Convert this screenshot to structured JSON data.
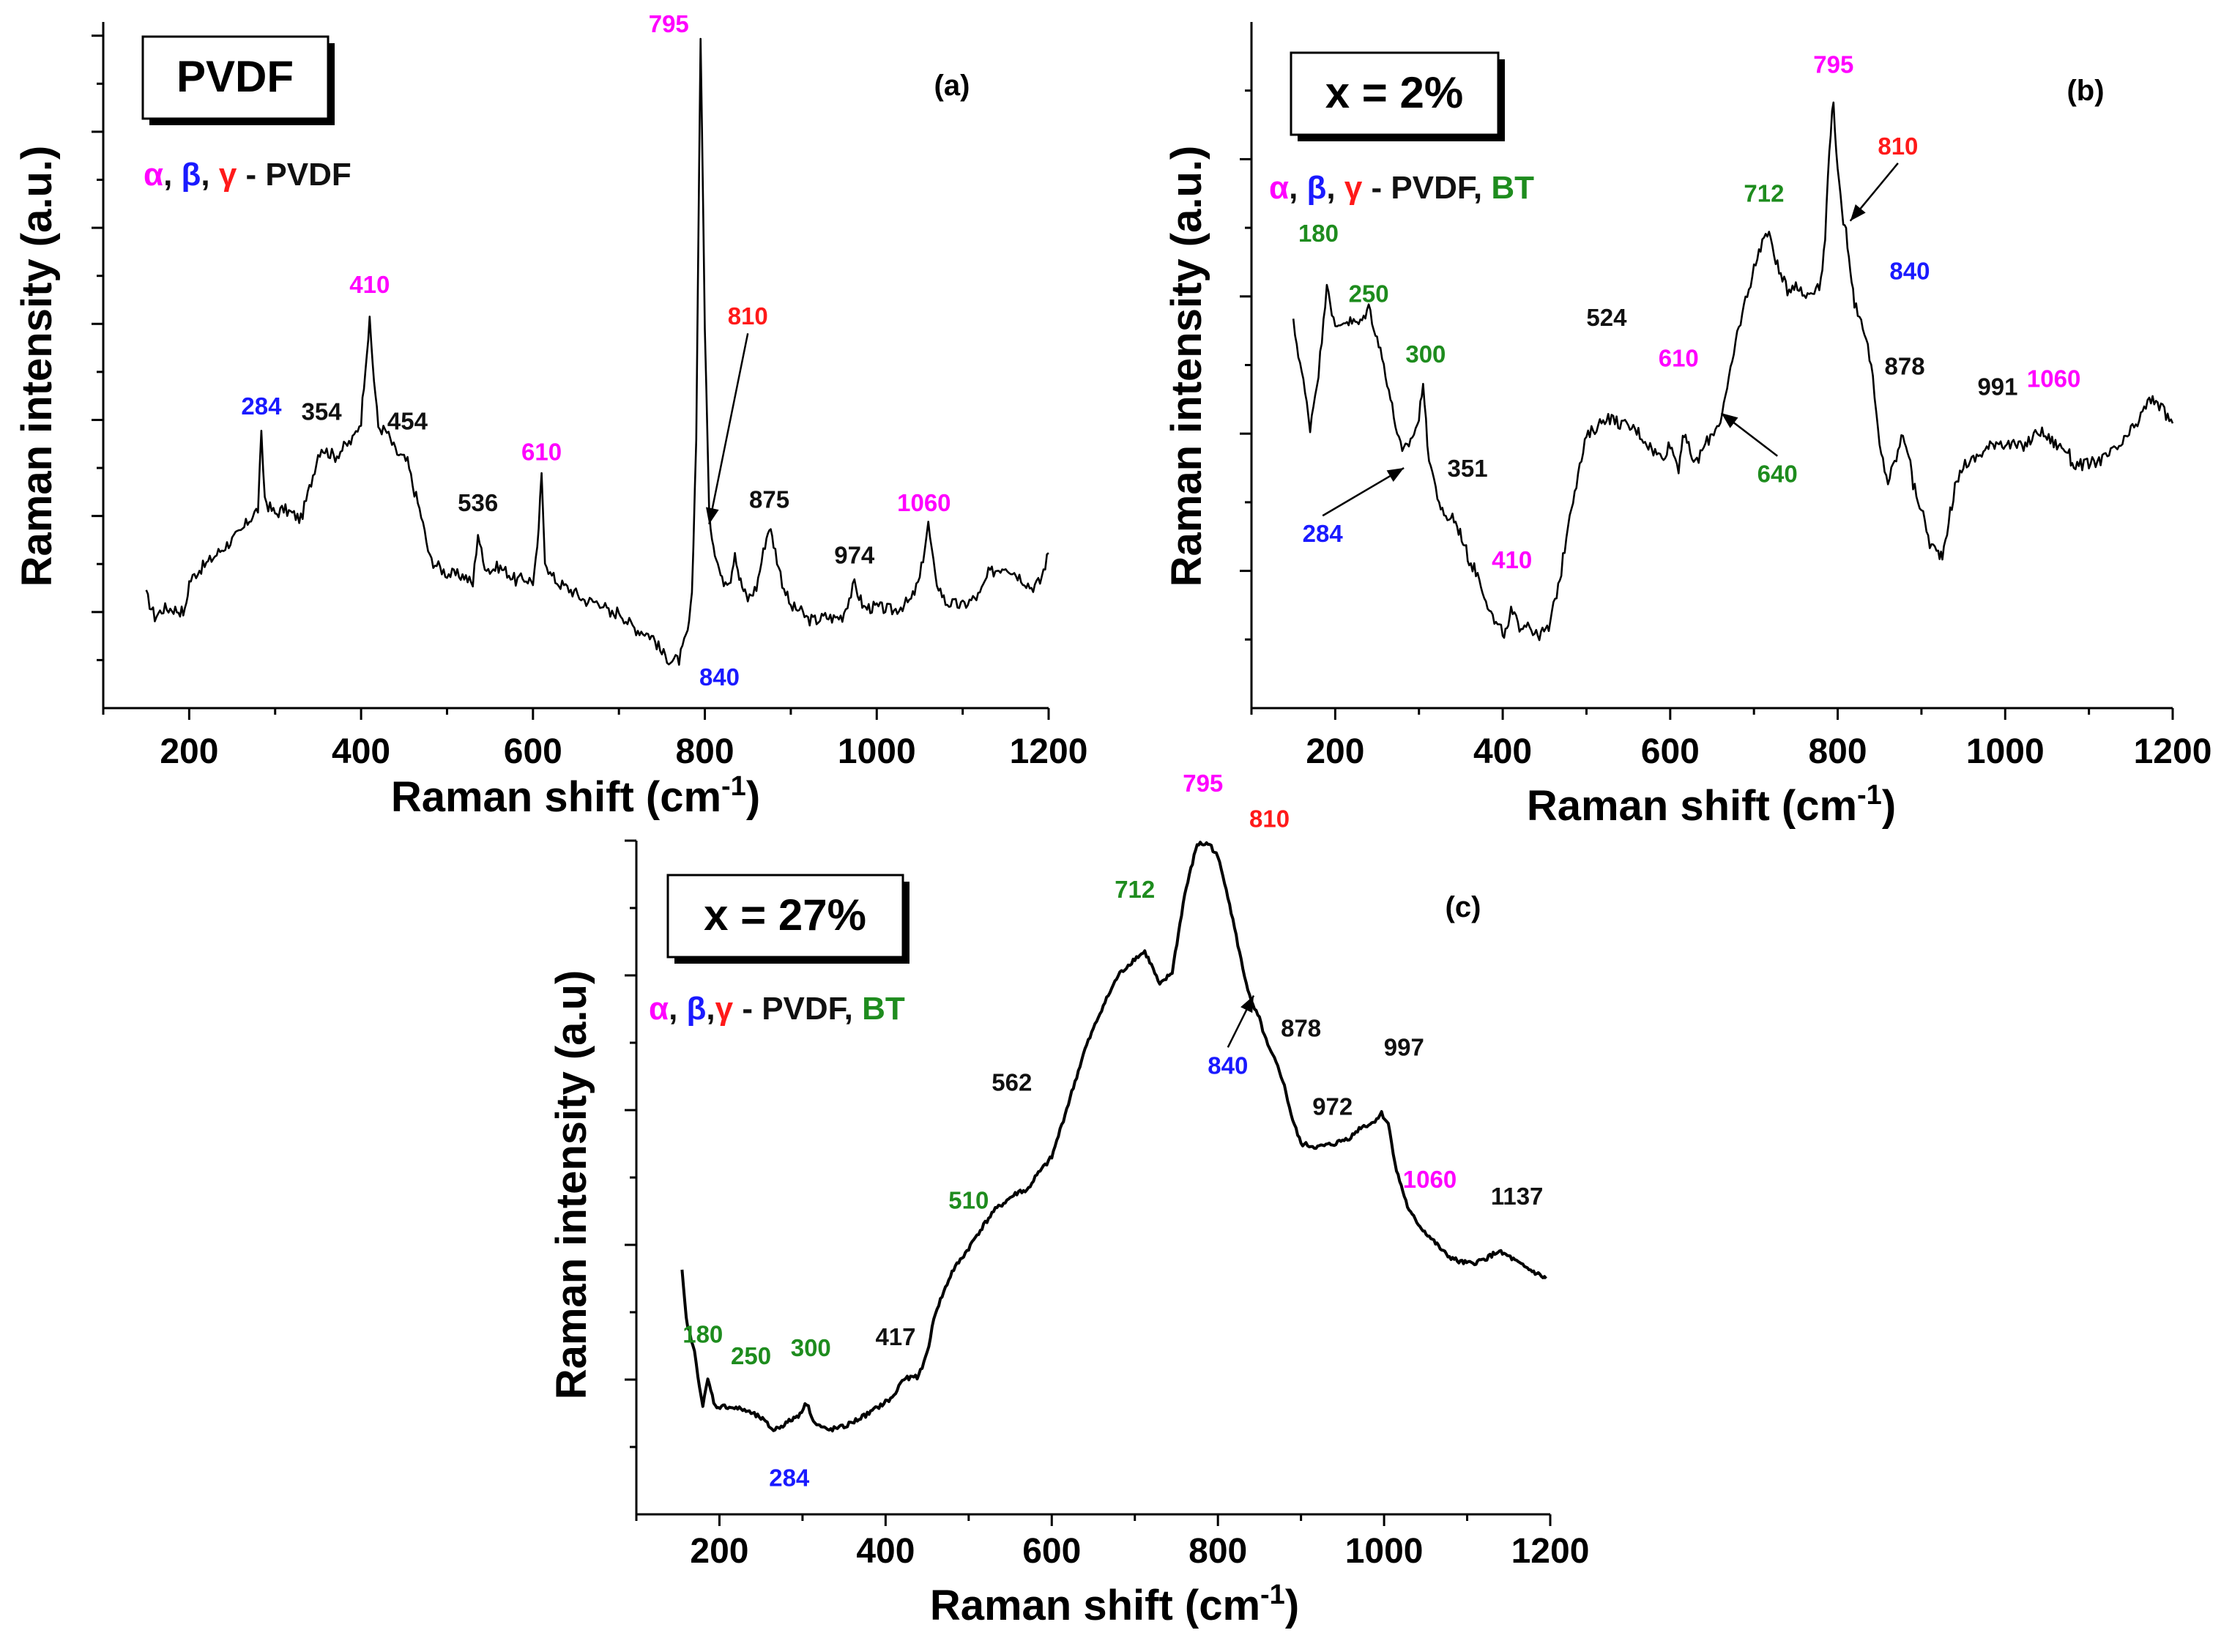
{
  "colors": {
    "alpha": "#ff00ff",
    "beta": "#1a1aff",
    "gamma": "#ff1a1a",
    "bt": "#1e8c1e",
    "neutral": "#111111",
    "line": "#000000"
  },
  "chart_data": [
    {
      "type": "line",
      "panel": "(a)",
      "sample_label": "PVDF",
      "legend": [
        {
          "text": "α",
          "color": "alpha"
        },
        {
          "text": ", ",
          "color": "neutral"
        },
        {
          "text": "β",
          "color": "beta"
        },
        {
          "text": ", ",
          "color": "neutral"
        },
        {
          "text": "γ",
          "color": "gamma"
        },
        {
          "text": " - PVDF",
          "color": "neutral"
        }
      ],
      "xlabel": "Raman shift (cm",
      "xlabel_sup": "-1",
      "xlabel_end": ")",
      "ylabel": "Raman intensity (a.u.)",
      "xlim": [
        100,
        1200
      ],
      "ylim": [
        0,
        100
      ],
      "xticks": [
        200,
        400,
        600,
        800,
        1000,
        1200
      ],
      "xtick_labels": [
        "200",
        "400",
        "600",
        "800",
        "1000",
        "1200"
      ],
      "y_major_ticks": [
        14,
        28,
        42,
        56,
        70,
        84,
        98
      ],
      "y_minor_ticks": [
        7,
        21,
        35,
        49,
        63,
        77,
        91
      ],
      "x": [
        150,
        160,
        170,
        180,
        195,
        200,
        210,
        220,
        240,
        260,
        270,
        280,
        284,
        288,
        292,
        300,
        310,
        320,
        330,
        340,
        350,
        354,
        360,
        370,
        380,
        390,
        400,
        405,
        410,
        415,
        420,
        430,
        440,
        454,
        460,
        470,
        480,
        490,
        500,
        510,
        520,
        530,
        536,
        542,
        550,
        560,
        570,
        580,
        590,
        600,
        605,
        610,
        614,
        620,
        630,
        640,
        650,
        660,
        670,
        680,
        690,
        700,
        710,
        720,
        730,
        740,
        750,
        760,
        770,
        780,
        785,
        790,
        795,
        800,
        805,
        810,
        815,
        820,
        830,
        835,
        840,
        845,
        850,
        860,
        870,
        875,
        880,
        890,
        900,
        910,
        920,
        930,
        940,
        950,
        960,
        974,
        985,
        1000,
        1020,
        1040,
        1050,
        1060,
        1068,
        1080,
        1100,
        1120,
        1130,
        1150,
        1170,
        1180,
        1190,
        1200
      ],
      "y": [
        16.5,
        13.3,
        14.5,
        14.5,
        14,
        18.4,
        20,
        21,
        23.4,
        25.6,
        27.5,
        29,
        39.6,
        30.7,
        29.5,
        28.3,
        29,
        28.3,
        27.5,
        32,
        37,
        38,
        37.4,
        36.7,
        38,
        39,
        42,
        50,
        56.2,
        48,
        41,
        40.2,
        37.4,
        35.8,
        32.6,
        28,
        21.8,
        20.6,
        19.6,
        19.4,
        19.3,
        18,
        25.6,
        21.3,
        20.1,
        20.6,
        19.8,
        18.6,
        18.9,
        18.5,
        22.8,
        33.8,
        21.9,
        19.5,
        18.2,
        17.5,
        16.7,
        15.7,
        15.5,
        15.4,
        13.5,
        14.2,
        12.6,
        11.5,
        11.1,
        10.3,
        8,
        7,
        7,
        11,
        16,
        40,
        98,
        56,
        28,
        24,
        21.2,
        18.5,
        19,
        23,
        19.1,
        17.1,
        15.9,
        17.6,
        24,
        26.5,
        24,
        18.4,
        14.7,
        14.3,
        12.9,
        12.8,
        13.3,
        13.1,
        13.4,
        18,
        14.6,
        14.7,
        14.2,
        15.7,
        18.8,
        26.8,
        19,
        15.4,
        14.9,
        16.5,
        19.6,
        20.8,
        18.8,
        17.6,
        18.4,
        22.6
      ],
      "annotations": [
        {
          "label": "284",
          "color": "beta",
          "x": 284,
          "y": 42.8
        },
        {
          "label": "354",
          "color": "neutral",
          "x": 354,
          "y": 42
        },
        {
          "label": "410",
          "color": "alpha",
          "x": 410,
          "y": 60.5
        },
        {
          "label": "454",
          "color": "neutral",
          "x": 454,
          "y": 40.6
        },
        {
          "label": "536",
          "color": "neutral",
          "x": 536,
          "y": 28.7
        },
        {
          "label": "610",
          "color": "alpha",
          "x": 610,
          "y": 36.1
        },
        {
          "label": "795",
          "color": "alpha",
          "x": 758,
          "y": 98.5
        },
        {
          "label": "810",
          "color": "gamma",
          "x": 850,
          "y": 55.9,
          "arrow_to": [
            805,
            26.8
          ]
        },
        {
          "label": "875",
          "color": "neutral",
          "x": 875,
          "y": 29.2
        },
        {
          "label": "840",
          "color": "beta",
          "x": 817,
          "y": 3.3
        },
        {
          "label": "974",
          "color": "neutral",
          "x": 974,
          "y": 21.1
        },
        {
          "label": "1060",
          "color": "alpha",
          "x": 1055,
          "y": 28.7
        }
      ]
    },
    {
      "type": "line",
      "panel": "(b)",
      "sample_label": "x = 2%",
      "legend": [
        {
          "text": "α",
          "color": "alpha"
        },
        {
          "text": ", ",
          "color": "neutral"
        },
        {
          "text": "β",
          "color": "beta"
        },
        {
          "text": ", ",
          "color": "neutral"
        },
        {
          "text": "γ",
          "color": "gamma"
        },
        {
          "text": " - PVDF, ",
          "color": "neutral"
        },
        {
          "text": "BT",
          "color": "bt"
        }
      ],
      "xlabel": "Raman shift (cm",
      "xlabel_sup": "-1",
      "xlabel_end": ")",
      "ylabel": "Raman intensity (a.u.)",
      "xlim": [
        100,
        1200
      ],
      "ylim": [
        0,
        100
      ],
      "xticks": [
        200,
        400,
        600,
        800,
        1000,
        1200
      ],
      "xtick_labels": [
        "200",
        "400",
        "600",
        "800",
        "1000",
        "1200"
      ],
      "y_major_ticks": [
        20,
        40,
        60,
        80
      ],
      "y_minor_ticks": [
        10,
        30,
        50,
        70,
        90
      ],
      "x": [
        150,
        160,
        170,
        180,
        186,
        190,
        200,
        210,
        230,
        240,
        250,
        260,
        270,
        280,
        290,
        300,
        305,
        310,
        320,
        330,
        340,
        351,
        360,
        370,
        380,
        390,
        400,
        405,
        410,
        420,
        430,
        440,
        455,
        470,
        480,
        500,
        520,
        524,
        540,
        560,
        580,
        590,
        600,
        610,
        615,
        620,
        630,
        640,
        650,
        660,
        670,
        680,
        690,
        700,
        712,
        720,
        730,
        740,
        750,
        760,
        770,
        780,
        785,
        790,
        795,
        800,
        805,
        810,
        815,
        820,
        830,
        840,
        850,
        860,
        870,
        878,
        885,
        890,
        900,
        910,
        920,
        925,
        940,
        950,
        960,
        980,
        991,
        1000,
        1020,
        1030,
        1040,
        1060,
        1075,
        1080,
        1100,
        1120,
        1140,
        1160,
        1170,
        1180,
        1190,
        1200
      ],
      "y": [
        56,
        49,
        41,
        49,
        56,
        62.5,
        55,
        56.5,
        56,
        58.5,
        54,
        49,
        42.5,
        37,
        39,
        42,
        48,
        38,
        32,
        27.5,
        28,
        25,
        21.5,
        19.5,
        16,
        12.5,
        11,
        11,
        14,
        12,
        12.5,
        10.5,
        11.5,
        20,
        28.5,
        39.5,
        42,
        42.5,
        41.5,
        40.5,
        37.5,
        36.5,
        38.5,
        35,
        40,
        38.5,
        35.5,
        38,
        40,
        42,
        47.5,
        54.5,
        59.5,
        64,
        69,
        68.5,
        63.5,
        61,
        62,
        60,
        61,
        62,
        68.5,
        82,
        88.5,
        78,
        72,
        69.5,
        64.5,
        59,
        56,
        50,
        38,
        33,
        36.5,
        40,
        37,
        32.5,
        29,
        24,
        22.5,
        22.5,
        32,
        35.5,
        36,
        38,
        39,
        38.5,
        38,
        39,
        40.5,
        38.5,
        37.5,
        35.5,
        35.5,
        36.5,
        38.5,
        42,
        44.5,
        45,
        43,
        41.5
      ],
      "annotations": [
        {
          "label": "180",
          "color": "bt",
          "x": 180,
          "y": 68
        },
        {
          "label": "250",
          "color": "bt",
          "x": 240,
          "y": 59.2
        },
        {
          "label": "300",
          "color": "bt",
          "x": 308,
          "y": 50.4
        },
        {
          "label": "284",
          "color": "beta",
          "x": 185,
          "y": 24.2,
          "arrow_to": [
            282,
            35
          ]
        },
        {
          "label": "351",
          "color": "neutral",
          "x": 358,
          "y": 33.7
        },
        {
          "label": "410",
          "color": "alpha",
          "x": 411,
          "y": 20.4
        },
        {
          "label": "524",
          "color": "neutral",
          "x": 524,
          "y": 55.7
        },
        {
          "label": "610",
          "color": "alpha",
          "x": 610,
          "y": 49.8
        },
        {
          "label": "640",
          "color": "bt",
          "x": 728,
          "y": 32.9,
          "arrow_to": [
            661,
            43
          ]
        },
        {
          "label": "712",
          "color": "bt",
          "x": 712,
          "y": 73.8
        },
        {
          "label": "795",
          "color": "alpha",
          "x": 795,
          "y": 92.6
        },
        {
          "label": "810",
          "color": "gamma",
          "x": 872,
          "y": 80.7,
          "arrow_to": [
            815,
            71
          ]
        },
        {
          "label": "840",
          "color": "beta",
          "x": 886,
          "y": 62.5
        },
        {
          "label": "878",
          "color": "neutral",
          "x": 880,
          "y": 48.6
        },
        {
          "label": "991",
          "color": "neutral",
          "x": 991,
          "y": 45.6
        },
        {
          "label": "1060",
          "color": "alpha",
          "x": 1058,
          "y": 46.8
        }
      ]
    },
    {
      "type": "line",
      "panel": "(c)",
      "sample_label": "x = 27%",
      "legend": [
        {
          "text": "α",
          "color": "alpha"
        },
        {
          "text": ", ",
          "color": "neutral"
        },
        {
          "text": "β",
          "color": "beta"
        },
        {
          "text": ",",
          "color": "neutral"
        },
        {
          "text": "γ",
          "color": "gamma"
        },
        {
          "text": " - PVDF, ",
          "color": "neutral"
        },
        {
          "text": "BT",
          "color": "bt"
        }
      ],
      "xlabel": "Raman shift (cm",
      "xlabel_sup": "-1",
      "xlabel_end": ")",
      "ylabel": "Raman intensity (a.u)",
      "xlim": [
        100,
        1200
      ],
      "ylim": [
        0,
        100
      ],
      "xticks": [
        200,
        400,
        600,
        800,
        1000,
        1200
      ],
      "xtick_labels": [
        "200",
        "400",
        "600",
        "800",
        "1000",
        "1200"
      ],
      "y_major_ticks": [
        20,
        40,
        60,
        80,
        100
      ],
      "y_minor_ticks": [
        10,
        30,
        50,
        70,
        90
      ],
      "x": [
        155,
        160,
        170,
        180,
        186,
        195,
        210,
        230,
        250,
        265,
        280,
        295,
        305,
        315,
        330,
        350,
        380,
        410,
        420,
        440,
        450,
        460,
        480,
        500,
        510,
        530,
        550,
        562,
        570,
        580,
        600,
        620,
        640,
        660,
        680,
        700,
        712,
        720,
        730,
        745,
        760,
        775,
        790,
        800,
        810,
        820,
        830,
        840,
        850,
        860,
        870,
        878,
        890,
        900,
        920,
        940,
        960,
        972,
        985,
        997,
        1005,
        1015,
        1030,
        1045,
        1060,
        1075,
        1090,
        1105,
        1120,
        1137,
        1150,
        1165,
        1180,
        1195
      ],
      "y": [
        36,
        29,
        24,
        16,
        20,
        16,
        16,
        15.5,
        14.3,
        12.5,
        13.5,
        14.7,
        16.5,
        13.5,
        12.5,
        13,
        15,
        17.5,
        20,
        20.5,
        24,
        30,
        36,
        39.5,
        41.5,
        45,
        47,
        48,
        48,
        50,
        53,
        61,
        69,
        75,
        80,
        82.5,
        83.5,
        81.5,
        78.5,
        80.5,
        92,
        99.5,
        99.5,
        97.5,
        93,
        87,
        81,
        76,
        73.5,
        69.5,
        67,
        64.5,
        58.5,
        55,
        54.5,
        55,
        56,
        57.5,
        58,
        59.5,
        58,
        51,
        45,
        42.5,
        40.5,
        38.5,
        37.5,
        37.2,
        37.8,
        39,
        38.3,
        37,
        36,
        35
      ],
      "annotations": [
        {
          "label": "180",
          "color": "bt",
          "x": 180,
          "y": 25.5
        },
        {
          "label": "250",
          "color": "bt",
          "x": 238,
          "y": 22.3
        },
        {
          "label": "300",
          "color": "bt",
          "x": 310,
          "y": 23.5
        },
        {
          "label": "284",
          "color": "beta",
          "x": 284,
          "y": 4.2
        },
        {
          "label": "417",
          "color": "neutral",
          "x": 412,
          "y": 25.1
        },
        {
          "label": "510",
          "color": "bt",
          "x": 500,
          "y": 45.4
        },
        {
          "label": "562",
          "color": "neutral",
          "x": 552,
          "y": 62.9
        },
        {
          "label": "712",
          "color": "bt",
          "x": 700,
          "y": 91.5
        },
        {
          "label": "795",
          "color": "alpha",
          "x": 782,
          "y": 107.3
        },
        {
          "label": "810",
          "color": "gamma",
          "x": 862,
          "y": 102
        },
        {
          "label": "840",
          "color": "beta",
          "x": 812,
          "y": 65.4,
          "arrow_to": [
            843,
            77
          ]
        },
        {
          "label": "878",
          "color": "neutral",
          "x": 900,
          "y": 70.9
        },
        {
          "label": "972",
          "color": "neutral",
          "x": 938,
          "y": 59.3
        },
        {
          "label": "997",
          "color": "neutral",
          "x": 1024,
          "y": 68.1
        },
        {
          "label": "1060",
          "color": "alpha",
          "x": 1055,
          "y": 48.5
        },
        {
          "label": "1137",
          "color": "neutral",
          "x": 1160,
          "y": 46
        }
      ]
    }
  ]
}
